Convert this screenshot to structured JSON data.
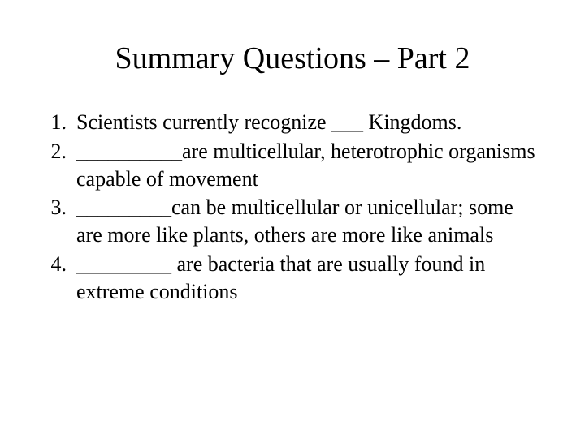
{
  "slide": {
    "title": "Summary Questions – Part 2",
    "title_fontsize": 38,
    "body_fontsize": 26,
    "background_color": "#ffffff",
    "text_color": "#000000",
    "font_family": "Times New Roman",
    "questions": [
      {
        "number": "1.",
        "text": "Scientists currently recognize ___ Kingdoms."
      },
      {
        "number": "2.",
        "text": "__________are multicellular, heterotrophic organisms capable of movement"
      },
      {
        "number": "3.",
        "text": "_________can be multicellular or unicellular; some are more like plants, others are more like animals"
      },
      {
        "number": "4.",
        "text": "_________ are bacteria that are usually found in extreme conditions"
      }
    ]
  }
}
